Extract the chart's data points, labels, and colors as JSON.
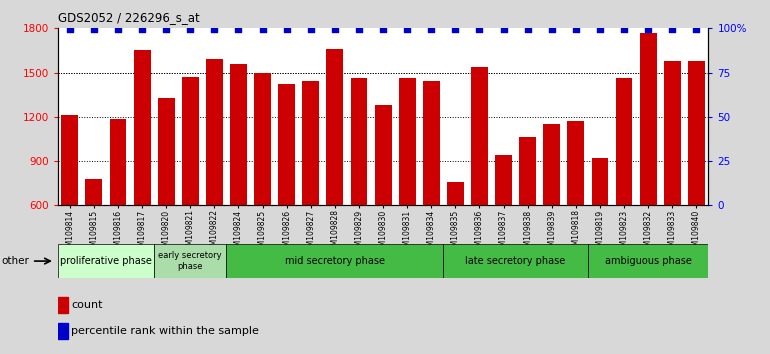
{
  "title": "GDS2052 / 226296_s_at",
  "samples": [
    "GSM109814",
    "GSM109815",
    "GSM109816",
    "GSM109817",
    "GSM109820",
    "GSM109821",
    "GSM109822",
    "GSM109824",
    "GSM109825",
    "GSM109826",
    "GSM109827",
    "GSM109828",
    "GSM109829",
    "GSM109830",
    "GSM109831",
    "GSM109834",
    "GSM109835",
    "GSM109836",
    "GSM109837",
    "GSM109838",
    "GSM109839",
    "GSM109818",
    "GSM109819",
    "GSM109823",
    "GSM109832",
    "GSM109833",
    "GSM109840"
  ],
  "counts": [
    1215,
    780,
    1185,
    1650,
    1330,
    1470,
    1590,
    1560,
    1500,
    1420,
    1440,
    1660,
    1460,
    1280,
    1460,
    1440,
    760,
    1540,
    940,
    1060,
    1150,
    1170,
    920,
    1460,
    1770,
    1580,
    1580
  ],
  "bar_color": "#cc0000",
  "dot_color": "#0000cc",
  "ylim_left": [
    600,
    1800
  ],
  "ylim_right": [
    0,
    100
  ],
  "yticks_left": [
    600,
    900,
    1200,
    1500,
    1800
  ],
  "yticks_right": [
    0,
    25,
    50,
    75,
    100
  ],
  "ytick_right_labels": [
    "0",
    "25",
    "50",
    "75",
    "100%"
  ],
  "grid_lines": [
    900,
    1200,
    1500
  ],
  "background_color": "#d8d8d8",
  "plot_bg": "#ffffff",
  "bar_bottom": 600,
  "phase_boundaries": [
    {
      "name": "proliferative phase",
      "start": 0,
      "end": 4,
      "color": "#ccffcc"
    },
    {
      "name": "early secretory\nphase",
      "start": 4,
      "end": 7,
      "color": "#aaddaa"
    },
    {
      "name": "mid secretory phase",
      "start": 7,
      "end": 16,
      "color": "#44bb44"
    },
    {
      "name": "late secretory phase",
      "start": 16,
      "end": 22,
      "color": "#44bb44"
    },
    {
      "name": "ambiguous phase",
      "start": 22,
      "end": 27,
      "color": "#44bb44"
    }
  ],
  "legend_count_color": "#cc0000",
  "legend_pct_color": "#0000cc"
}
